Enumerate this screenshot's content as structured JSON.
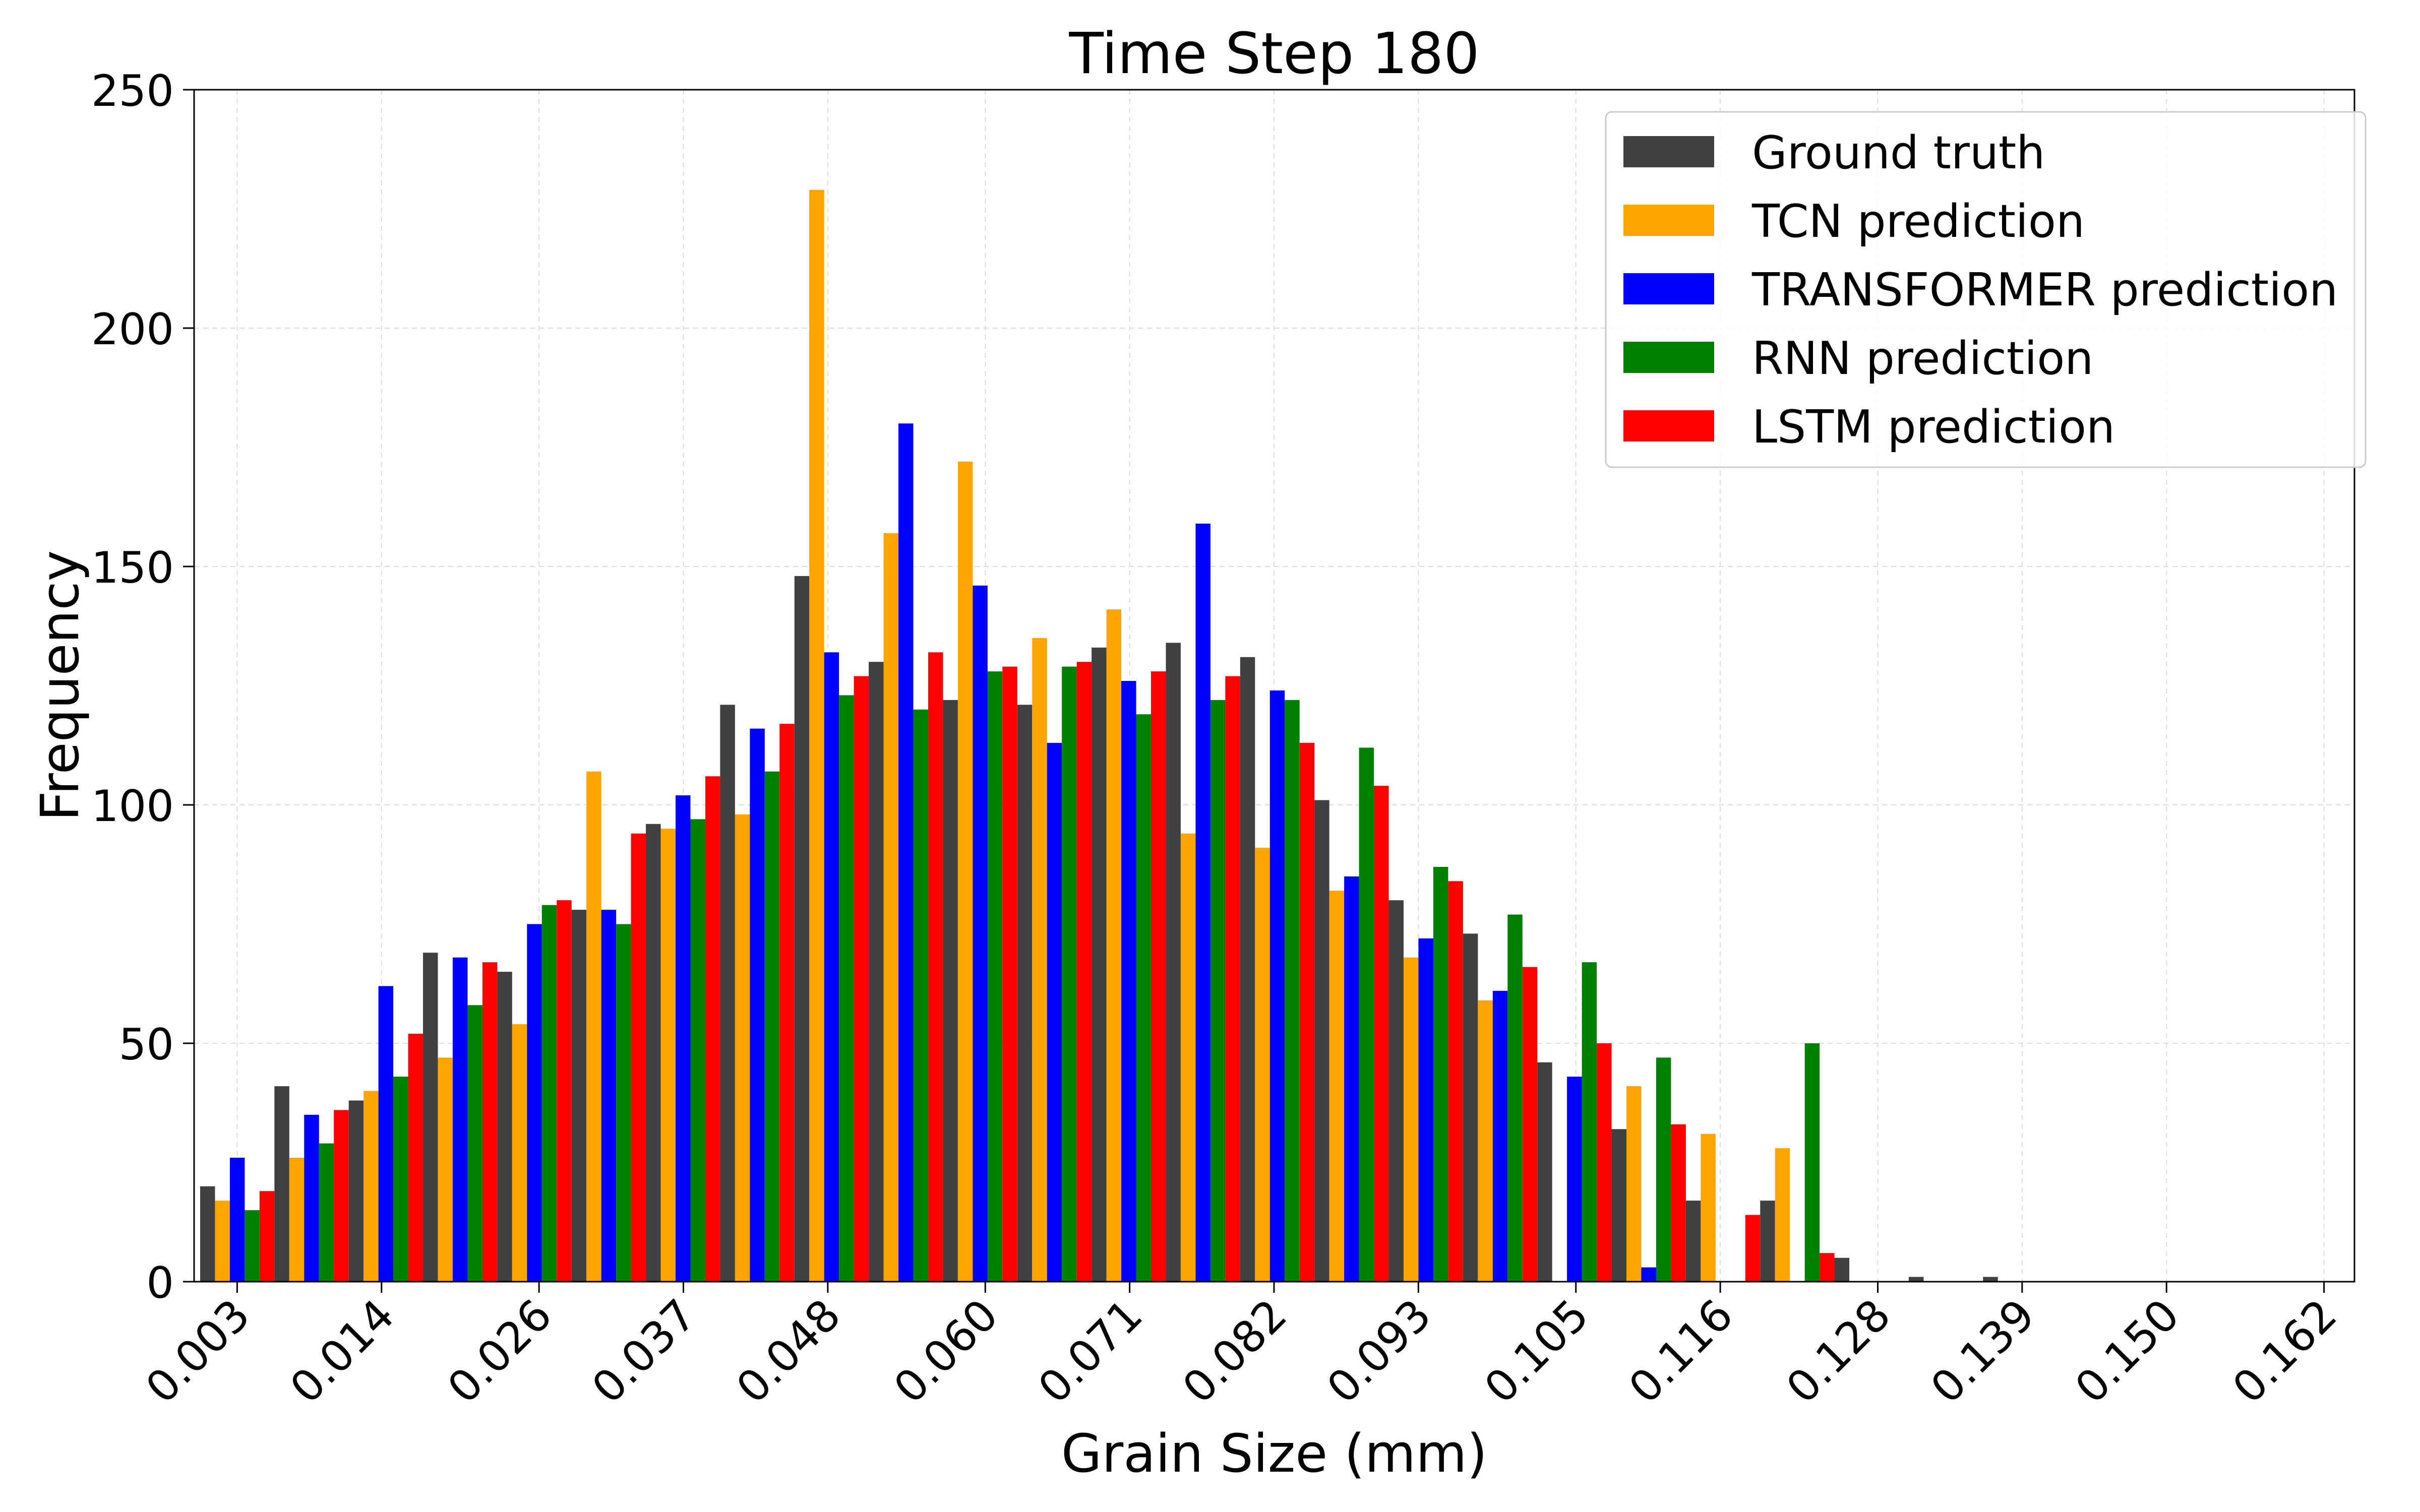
{
  "chart_data": {
    "type": "bar",
    "title": "Time Step 180",
    "xlabel": "Grain Size (mm)",
    "ylabel": "Frequency",
    "ylim": [
      0,
      250
    ],
    "yticks": [
      "0",
      "50",
      "100",
      "150",
      "200",
      "250"
    ],
    "xlim": [
      -0.00028,
      0.16432
    ],
    "xticks": [
      "0.003",
      "0.014",
      "0.026",
      "0.037",
      "0.048",
      "0.060",
      "0.071",
      "0.082",
      "0.093",
      "0.105",
      "0.116",
      "0.128",
      "0.139",
      "0.150",
      "0.162"
    ],
    "xtick_values": [
      0.003,
      0.014,
      0.026,
      0.037,
      0.048,
      0.06,
      0.071,
      0.082,
      0.093,
      0.105,
      0.116,
      0.128,
      0.139,
      0.15,
      0.162
    ],
    "bin_width": 0.00566,
    "bin_start": 0.00018,
    "grid": true,
    "legend_position": "top-right",
    "series": [
      {
        "name": "Ground truth",
        "color": "#404040",
        "values": [
          20,
          41,
          38,
          69,
          65,
          78,
          96,
          121,
          148,
          130,
          122,
          121,
          133,
          134,
          131,
          101,
          80,
          73,
          46,
          32,
          17,
          17,
          5,
          1,
          1,
          0,
          0,
          0,
          0
        ]
      },
      {
        "name": "TCN prediction",
        "color": "#FFA500",
        "values": [
          17,
          26,
          40,
          47,
          54,
          107,
          95,
          98,
          229,
          157,
          172,
          135,
          141,
          94,
          91,
          82,
          68,
          59,
          0,
          41,
          31,
          28,
          0,
          0,
          0,
          0,
          0,
          0,
          0
        ]
      },
      {
        "name": "TRANSFORMER prediction",
        "color": "#0000FF",
        "values": [
          26,
          35,
          62,
          68,
          75,
          78,
          102,
          116,
          132,
          180,
          146,
          113,
          126,
          159,
          124,
          85,
          72,
          61,
          43,
          3,
          0,
          0,
          0,
          0,
          0,
          0,
          0,
          0,
          0
        ]
      },
      {
        "name": "RNN prediction",
        "color": "#008000",
        "values": [
          15,
          29,
          43,
          58,
          79,
          75,
          97,
          107,
          123,
          120,
          128,
          129,
          119,
          122,
          122,
          112,
          87,
          77,
          67,
          47,
          0,
          50,
          0,
          0,
          0,
          0,
          0,
          0,
          0
        ]
      },
      {
        "name": "LSTM prediction",
        "color": "#FF0000",
        "values": [
          19,
          36,
          52,
          67,
          80,
          94,
          106,
          117,
          127,
          132,
          129,
          130,
          128,
          127,
          113,
          104,
          84,
          66,
          50,
          33,
          14,
          6,
          0,
          0,
          0,
          0,
          0,
          0,
          0
        ]
      }
    ]
  }
}
